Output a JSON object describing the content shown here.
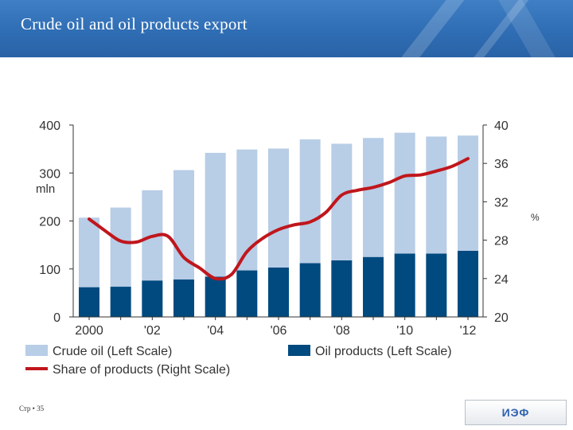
{
  "slide": {
    "title": "Crude oil and oil products export",
    "footer": "Стр • 35",
    "logo_text": "ИЭФ"
  },
  "chart_data": {
    "type": "bar",
    "stacked": true,
    "x": [
      2000,
      2001,
      2002,
      2003,
      2004,
      2005,
      2006,
      2007,
      2008,
      2009,
      2010,
      2011,
      2012
    ],
    "x_tick_labels": [
      "2000",
      "'02",
      "'04",
      "'06",
      "'08",
      "'10",
      "'12"
    ],
    "left_axis": {
      "label": "mln",
      "ylim": [
        0,
        400
      ],
      "ticks": [
        0,
        100,
        200,
        300,
        400
      ]
    },
    "right_axis": {
      "label": "%",
      "ylim": [
        20,
        40
      ],
      "ticks": [
        20,
        24,
        28,
        32,
        36,
        40
      ]
    },
    "series": [
      {
        "name": "Crude oil  (Left Scale)",
        "kind": "bar",
        "axis": "left",
        "color": "#b8cde6",
        "values": [
          145,
          165,
          188,
          228,
          258,
          252,
          248,
          258,
          243,
          248,
          252,
          244,
          240
        ]
      },
      {
        "name": "Oil products  (Left Scale)",
        "kind": "bar",
        "axis": "left",
        "color": "#004a7f",
        "values": [
          62,
          63,
          76,
          78,
          84,
          97,
          103,
          112,
          118,
          125,
          132,
          132,
          138
        ]
      },
      {
        "name": "Share of products  (Right Scale)",
        "kind": "line",
        "axis": "right",
        "color": "#c0161c",
        "x": [
          2000,
          2000.5,
          2001,
          2001.5,
          2002,
          2002.5,
          2003,
          2003.5,
          2004,
          2004.5,
          2005,
          2005.5,
          2006,
          2006.5,
          2007,
          2007.5,
          2008,
          2008.5,
          2009,
          2009.5,
          2010,
          2010.5,
          2011,
          2011.5,
          2012
        ],
        "values": [
          30.2,
          29.0,
          27.9,
          27.8,
          28.4,
          28.4,
          26.2,
          25.1,
          24.0,
          24.4,
          26.8,
          28.2,
          29.1,
          29.6,
          29.9,
          30.9,
          32.7,
          33.2,
          33.5,
          34.0,
          34.7,
          34.8,
          35.2,
          35.7,
          36.5
        ]
      }
    ],
    "legend_position": "bottom"
  }
}
